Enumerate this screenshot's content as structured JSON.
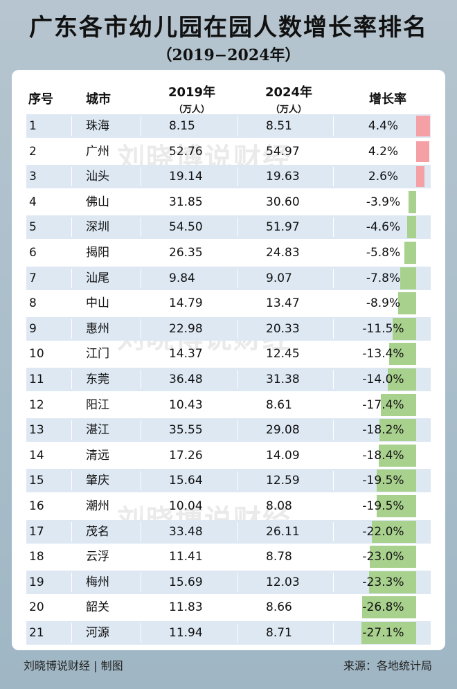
{
  "title": "广东各市幼儿园在园人数增长率排名",
  "subtitle": "（2019−2024年）",
  "headers": {
    "rank": "序号",
    "city": "城市",
    "y2019": "2019年",
    "y2019_unit": "（万人）",
    "y2024": "2024年",
    "y2024_unit": "（万人）",
    "growth": "增长率"
  },
  "watermark": "刘晓博说财经",
  "footer": {
    "left": "刘晓博说财经 | 制图",
    "right": "来源：各地统计局"
  },
  "colors": {
    "positive": "#f4a0a4",
    "negative": "#a9d18e",
    "alt_row": "#dde8f3"
  },
  "chart_data": {
    "type": "table",
    "columns": [
      "序号",
      "城市",
      "2019年（万人）",
      "2024年（万人）",
      "增长率"
    ],
    "rows": [
      {
        "rank": "1",
        "city": "珠海",
        "v2019": "8.15",
        "v2024": "8.51",
        "growth": "4.4%",
        "g": 4.4
      },
      {
        "rank": "2",
        "city": "广州",
        "v2019": "52.76",
        "v2024": "54.97",
        "growth": "4.2%",
        "g": 4.2
      },
      {
        "rank": "3",
        "city": "汕头",
        "v2019": "19.14",
        "v2024": "19.63",
        "growth": "2.6%",
        "g": 2.6
      },
      {
        "rank": "4",
        "city": "佛山",
        "v2019": "31.85",
        "v2024": "30.60",
        "growth": "-3.9%",
        "g": -3.9
      },
      {
        "rank": "5",
        "city": "深圳",
        "v2019": "54.50",
        "v2024": "51.97",
        "growth": "-4.6%",
        "g": -4.6
      },
      {
        "rank": "6",
        "city": "揭阳",
        "v2019": "26.35",
        "v2024": "24.83",
        "growth": "-5.8%",
        "g": -5.8
      },
      {
        "rank": "7",
        "city": "汕尾",
        "v2019": "9.84",
        "v2024": "9.07",
        "growth": "-7.8%",
        "g": -7.8
      },
      {
        "rank": "8",
        "city": "中山",
        "v2019": "14.79",
        "v2024": "13.47",
        "growth": "-8.9%",
        "g": -8.9
      },
      {
        "rank": "9",
        "city": "惠州",
        "v2019": "22.98",
        "v2024": "20.33",
        "growth": "-11.5%",
        "g": -11.5
      },
      {
        "rank": "10",
        "city": "江门",
        "v2019": "14.37",
        "v2024": "12.45",
        "growth": "-13.4%",
        "g": -13.4
      },
      {
        "rank": "11",
        "city": "东莞",
        "v2019": "36.48",
        "v2024": "31.38",
        "growth": "-14.0%",
        "g": -14.0
      },
      {
        "rank": "12",
        "city": "阳江",
        "v2019": "10.43",
        "v2024": "8.61",
        "growth": "-17.4%",
        "g": -17.4
      },
      {
        "rank": "13",
        "city": "湛江",
        "v2019": "35.55",
        "v2024": "29.08",
        "growth": "-18.2%",
        "g": -18.2
      },
      {
        "rank": "14",
        "city": "清远",
        "v2019": "17.26",
        "v2024": "14.09",
        "growth": "-18.4%",
        "g": -18.4
      },
      {
        "rank": "15",
        "city": "肇庆",
        "v2019": "15.64",
        "v2024": "12.59",
        "growth": "-19.5%",
        "g": -19.5
      },
      {
        "rank": "16",
        "city": "潮州",
        "v2019": "10.04",
        "v2024": "8.08",
        "growth": "-19.5%",
        "g": -19.5
      },
      {
        "rank": "17",
        "city": "茂名",
        "v2019": "33.48",
        "v2024": "26.11",
        "growth": "-22.0%",
        "g": -22.0
      },
      {
        "rank": "18",
        "city": "云浮",
        "v2019": "11.41",
        "v2024": "8.78",
        "growth": "-23.0%",
        "g": -23.0
      },
      {
        "rank": "19",
        "city": "梅州",
        "v2019": "15.69",
        "v2024": "12.03",
        "growth": "-23.3%",
        "g": -23.3
      },
      {
        "rank": "20",
        "city": "韶关",
        "v2019": "11.83",
        "v2024": "8.66",
        "growth": "-26.8%",
        "g": -26.8
      },
      {
        "rank": "21",
        "city": "河源",
        "v2019": "11.94",
        "v2024": "8.71",
        "growth": "-27.1%",
        "g": -27.1
      }
    ]
  }
}
